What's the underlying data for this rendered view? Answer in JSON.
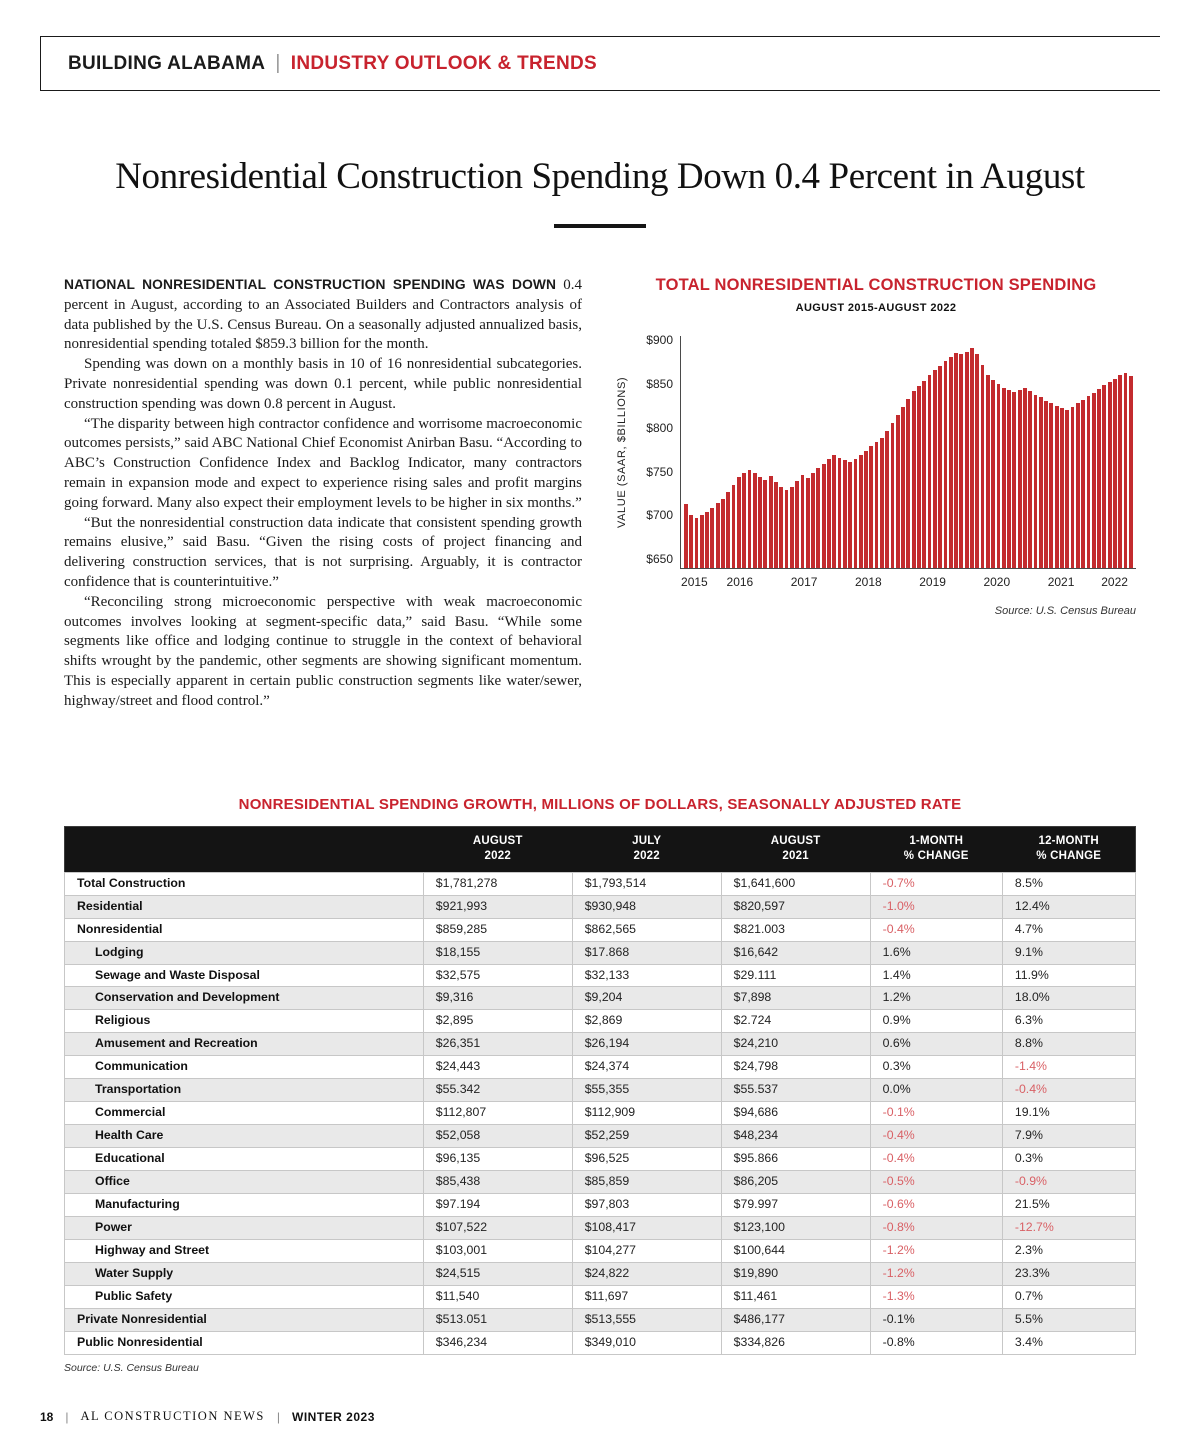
{
  "colors": {
    "accent": "#c8232e",
    "bar": "#c32b2e",
    "neg": "#d96065",
    "header_bg": "#141414",
    "row_shade": "#e9e9e9"
  },
  "header": {
    "brand": "BUILDING ALABAMA",
    "separator": "|",
    "section": "INDUSTRY OUTLOOK & TRENDS"
  },
  "page": {
    "title": "Nonresidential Construction Spending Down 0.4 Percent in August"
  },
  "article": {
    "paragraphs": [
      {
        "lead": "NATIONAL NONRESIDENTIAL CONSTRUCTION SPENDING WAS DOWN",
        "text": "0.4 percent in August, according to an Associated Builders and Contractors analysis of data published by the U.S. Census Bureau. On a seasonally adjusted annualized basis, nonresidential spending totaled $859.3 billion for the month."
      },
      {
        "text": "Spending was down on a monthly basis in 10 of 16 nonresidential subcategories. Private nonresidential spending was down 0.1 percent, while public nonresidential construction spending was down 0.8 percent in August."
      },
      {
        "text": "“The disparity between high contractor confidence and worrisome macroeconomic outcomes persists,” said ABC National Chief Economist Anirban Basu. “According to ABC’s Construction Confidence Index and Backlog Indicator, many contractors remain in expansion mode and expect to experience rising sales and profit margins going forward. Many also expect their employment levels to be higher in six months.”"
      },
      {
        "text": "“But the nonresidential construction data indicate that consistent spending growth remains elusive,” said Basu. “Given the rising costs of project financing and delivering construction services, that is not surprising. Arguably, it is contractor confidence that is counterintuitive.”"
      },
      {
        "text": "“Reconciling strong microeconomic perspective with weak macroeconomic outcomes involves looking at segment-specific data,” said Basu. “While some segments like office and lodging continue to struggle in the context of behavioral shifts wrought by the pandemic, other segments are showing significant momentum. This is especially apparent in certain public construction segments like water/sewer, highway/street and flood control.”"
      }
    ]
  },
  "chart_data": {
    "type": "bar",
    "title": "TOTAL NONRESIDENTIAL CONSTRUCTION SPENDING",
    "subtitle": "AUGUST 2015-AUGUST 2022",
    "ylabel": "VALUE (SAAR, $BILLIONS)",
    "source": "Source: U.S. Census Bureau",
    "start_month": "August 2015",
    "end_month": "August 2022",
    "ylim": [
      640,
      905
    ],
    "y_ticks": [
      {
        "value": 650,
        "label": "$650"
      },
      {
        "value": 700,
        "label": "$700"
      },
      {
        "value": 750,
        "label": "$750"
      },
      {
        "value": 800,
        "label": "$800"
      },
      {
        "value": 850,
        "label": "$850"
      },
      {
        "value": 900,
        "label": "$900"
      }
    ],
    "x_years": [
      {
        "label": "2015",
        "center": 2
      },
      {
        "label": "2016",
        "center": 10.5
      },
      {
        "label": "2017",
        "center": 22.5
      },
      {
        "label": "2018",
        "center": 34.5
      },
      {
        "label": "2019",
        "center": 46.5
      },
      {
        "label": "2020",
        "center": 58.5
      },
      {
        "label": "2021",
        "center": 70.5
      },
      {
        "label": "2022",
        "center": 80.5
      }
    ],
    "values": [
      713,
      700,
      697,
      700,
      704,
      709,
      714,
      719,
      727,
      735,
      744,
      748,
      752,
      748,
      744,
      741,
      745,
      738,
      732,
      729,
      733,
      739,
      746,
      743,
      749,
      754,
      759,
      764,
      769,
      766,
      763,
      761,
      764,
      769,
      774,
      779,
      784,
      789,
      797,
      806,
      815,
      824,
      833,
      842,
      848,
      854,
      860,
      866,
      871,
      876,
      881,
      886,
      884,
      887,
      891,
      885,
      872,
      861,
      855,
      850,
      846,
      843,
      841,
      843,
      846,
      842,
      838,
      835,
      831,
      828,
      825,
      823,
      821,
      824,
      828,
      832,
      836,
      840,
      845,
      849,
      853,
      856,
      860,
      863,
      859
    ]
  },
  "table": {
    "title": "NONRESIDENTIAL SPENDING GROWTH, MILLIONS OF DOLLARS, SEASONALLY ADJUSTED RATE",
    "columns": [
      {
        "line1": "",
        "line2": ""
      },
      {
        "line1": "AUGUST",
        "line2": "2022"
      },
      {
        "line1": "JULY",
        "line2": "2022"
      },
      {
        "line1": "AUGUST",
        "line2": "2021"
      },
      {
        "line1": "1-MONTH",
        "line2": "% CHANGE"
      },
      {
        "line1": "12-MONTH",
        "line2": "% CHANGE"
      }
    ],
    "rows": [
      {
        "label": "Total Construction",
        "indent": false,
        "values": [
          "$1,781,278",
          "$1,793,514",
          "$1,641,600",
          "-0.7%",
          "8.5%"
        ]
      },
      {
        "label": "Residential",
        "indent": false,
        "values": [
          "$921,993",
          "$930,948",
          "$820,597",
          "-1.0%",
          "12.4%"
        ]
      },
      {
        "label": "Nonresidential",
        "indent": false,
        "values": [
          "$859,285",
          "$862,565",
          "$821.003",
          "-0.4%",
          "4.7%"
        ]
      },
      {
        "label": "Lodging",
        "indent": true,
        "values": [
          "$18,155",
          "$17.868",
          "$16,642",
          "1.6%",
          "9.1%"
        ]
      },
      {
        "label": "Sewage and Waste Disposal",
        "indent": true,
        "values": [
          "$32,575",
          "$32,133",
          "$29.111",
          "1.4%",
          "11.9%"
        ]
      },
      {
        "label": "Conservation and Development",
        "indent": true,
        "values": [
          "$9,316",
          "$9,204",
          "$7,898",
          "1.2%",
          "18.0%"
        ]
      },
      {
        "label": "Religious",
        "indent": true,
        "values": [
          "$2,895",
          "$2,869",
          "$2.724",
          "0.9%",
          "6.3%"
        ]
      },
      {
        "label": "Amusement and Recreation",
        "indent": true,
        "values": [
          "$26,351",
          "$26,194",
          "$24,210",
          "0.6%",
          "8.8%"
        ]
      },
      {
        "label": "Communication",
        "indent": true,
        "values": [
          "$24,443",
          "$24,374",
          "$24,798",
          "0.3%",
          "-1.4%"
        ]
      },
      {
        "label": "Transportation",
        "indent": true,
        "values": [
          "$55.342",
          "$55,355",
          "$55.537",
          "0.0%",
          "-0.4%"
        ]
      },
      {
        "label": "Commercial",
        "indent": true,
        "values": [
          "$112,807",
          "$112,909",
          "$94,686",
          "-0.1%",
          "19.1%"
        ]
      },
      {
        "label": "Health Care",
        "indent": true,
        "values": [
          "$52,058",
          "$52,259",
          "$48,234",
          "-0.4%",
          "7.9%"
        ]
      },
      {
        "label": "Educational",
        "indent": true,
        "values": [
          "$96,135",
          "$96,525",
          "$95.866",
          "-0.4%",
          "0.3%"
        ]
      },
      {
        "label": "Office",
        "indent": true,
        "values": [
          "$85,438",
          "$85,859",
          "$86,205",
          "-0.5%",
          "-0.9%"
        ]
      },
      {
        "label": "Manufacturing",
        "indent": true,
        "values": [
          "$97.194",
          "$97,803",
          "$79.997",
          "-0.6%",
          "21.5%"
        ]
      },
      {
        "label": "Power",
        "indent": true,
        "values": [
          "$107,522",
          "$108,417",
          "$123,100",
          "-0.8%",
          "-12.7%"
        ]
      },
      {
        "label": "Highway and Street",
        "indent": true,
        "values": [
          "$103,001",
          "$104,277",
          "$100,644",
          "-1.2%",
          "2.3%"
        ]
      },
      {
        "label": "Water Supply",
        "indent": true,
        "values": [
          "$24,515",
          "$24,822",
          "$19,890",
          "-1.2%",
          "23.3%"
        ]
      },
      {
        "label": "Public Safety",
        "indent": true,
        "values": [
          "$11,540",
          "$11,697",
          "$11,461",
          "-1.3%",
          "0.7%"
        ]
      },
      {
        "label": "Private Nonresidential",
        "indent": false,
        "top_rule": true,
        "plain_pct": true,
        "values": [
          "$513.051",
          "$513,555",
          "$486,177",
          "-0.1%",
          "5.5%"
        ]
      },
      {
        "label": "Public Nonresidential",
        "indent": false,
        "plain_pct": true,
        "values": [
          "$346,234",
          "$349,010",
          "$334,826",
          "-0.8%",
          "3.4%"
        ]
      }
    ],
    "source": "Source: U.S. Census Bureau"
  },
  "footer": {
    "page_number": "18",
    "separator": "|",
    "publication": "AL CONSTRUCTION NEWS",
    "issue": "WINTER 2023"
  }
}
